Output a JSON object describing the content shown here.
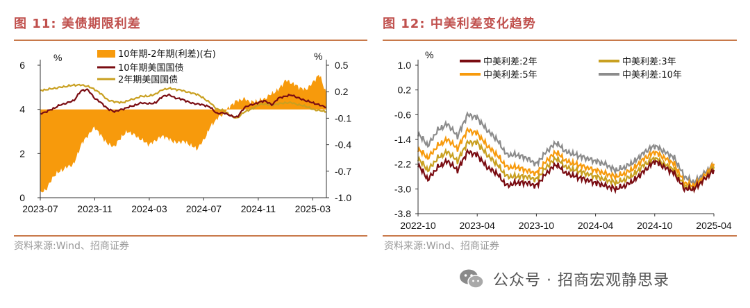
{
  "left": {
    "title": "图 11:  美债期限利差",
    "source": "资料来源:Wind、招商证券",
    "colors": {
      "spread": "#f79a0c",
      "y10": "#7a0c12",
      "y2": "#c9a021"
    },
    "chart_data": {
      "type": "line",
      "x_ticks": [
        "2023-07",
        "2023-11",
        "2024-03",
        "2024-07",
        "2024-11",
        "2025-03"
      ],
      "x_range": [
        "2023-07",
        "2025-04"
      ],
      "left_axis": {
        "unit": "%",
        "range": [
          0,
          6
        ],
        "ticks": [
          "6",
          "4",
          "2",
          "0"
        ]
      },
      "right_axis": {
        "unit": "%",
        "range": [
          -1.0,
          0.5
        ],
        "ticks": [
          "0.5",
          "0.2",
          "-0.1",
          "-0.4",
          "-0.7",
          "-1.0"
        ]
      },
      "series": [
        {
          "name": "10年期-2年期(利差)(右)",
          "type": "area",
          "axis": "right",
          "x": [
            "2023-07",
            "2023-07-15",
            "2023-08",
            "2023-08-15",
            "2023-09",
            "2023-09-15",
            "2023-10",
            "2023-10-15",
            "2023-11",
            "2023-11-15",
            "2023-12",
            "2023-12-15",
            "2024-01",
            "2024-01-15",
            "2024-02",
            "2024-02-15",
            "2024-03",
            "2024-03-15",
            "2024-04",
            "2024-04-15",
            "2024-05",
            "2024-05-15",
            "2024-06",
            "2024-06-15",
            "2024-07",
            "2024-07-15",
            "2024-08",
            "2024-08-15",
            "2024-09",
            "2024-09-15",
            "2024-10",
            "2024-10-15",
            "2024-11",
            "2024-11-15",
            "2024-12",
            "2024-12-15",
            "2025-01",
            "2025-01-15",
            "2025-02",
            "2025-02-15",
            "2025-03",
            "2025-03-15",
            "2025-04"
          ],
          "values": [
            -0.95,
            -0.9,
            -0.75,
            -0.7,
            -0.65,
            -0.62,
            -0.4,
            -0.3,
            -0.2,
            -0.3,
            -0.4,
            -0.42,
            -0.3,
            -0.25,
            -0.3,
            -0.35,
            -0.4,
            -0.35,
            -0.3,
            -0.34,
            -0.38,
            -0.36,
            -0.4,
            -0.45,
            -0.35,
            -0.2,
            -0.1,
            -0.05,
            0.05,
            0.1,
            0.12,
            0.08,
            0.1,
            0.12,
            0.18,
            0.22,
            0.33,
            0.3,
            0.25,
            0.22,
            0.3,
            0.4,
            0.18
          ]
        },
        {
          "name": "10年期美国国债",
          "type": "line",
          "axis": "left",
          "x": [
            "2023-07",
            "2023-07-15",
            "2023-08",
            "2023-08-15",
            "2023-09",
            "2023-09-15",
            "2023-10",
            "2023-10-15",
            "2023-11",
            "2023-11-15",
            "2023-12",
            "2023-12-15",
            "2024-01",
            "2024-01-15",
            "2024-02",
            "2024-02-15",
            "2024-03",
            "2024-03-15",
            "2024-04",
            "2024-04-15",
            "2024-05",
            "2024-05-15",
            "2024-06",
            "2024-06-15",
            "2024-07",
            "2024-07-15",
            "2024-08",
            "2024-08-15",
            "2024-09",
            "2024-09-15",
            "2024-10",
            "2024-10-15",
            "2024-11",
            "2024-11-15",
            "2024-12",
            "2024-12-15",
            "2025-01",
            "2025-01-15",
            "2025-02",
            "2025-02-15",
            "2025-03",
            "2025-03-15",
            "2025-04"
          ],
          "values": [
            3.8,
            3.9,
            4.05,
            4.2,
            4.3,
            4.4,
            4.85,
            4.9,
            4.5,
            4.3,
            4.0,
            3.9,
            4.0,
            4.1,
            4.2,
            4.3,
            4.25,
            4.3,
            4.6,
            4.65,
            4.5,
            4.45,
            4.3,
            4.25,
            4.2,
            4.1,
            3.8,
            3.85,
            3.7,
            3.65,
            4.1,
            4.2,
            4.3,
            4.4,
            4.2,
            4.5,
            4.6,
            4.65,
            4.5,
            4.4,
            4.3,
            4.2,
            4.1
          ]
        },
        {
          "name": "2年期美国国债",
          "type": "line",
          "axis": "left",
          "x": [
            "2023-07",
            "2023-07-15",
            "2023-08",
            "2023-08-15",
            "2023-09",
            "2023-09-15",
            "2023-10",
            "2023-10-15",
            "2023-11",
            "2023-11-15",
            "2023-12",
            "2023-12-15",
            "2024-01",
            "2024-01-15",
            "2024-02",
            "2024-02-15",
            "2024-03",
            "2024-03-15",
            "2024-04",
            "2024-04-15",
            "2024-05",
            "2024-05-15",
            "2024-06",
            "2024-06-15",
            "2024-07",
            "2024-07-15",
            "2024-08",
            "2024-08-15",
            "2024-09",
            "2024-09-15",
            "2024-10",
            "2024-10-15",
            "2024-11",
            "2024-11-15",
            "2024-12",
            "2024-12-15",
            "2025-01",
            "2025-01-15",
            "2025-02",
            "2025-02-15",
            "2025-03",
            "2025-03-15",
            "2025-04"
          ],
          "values": [
            4.85,
            4.9,
            4.95,
            5.0,
            5.05,
            5.1,
            5.1,
            5.05,
            4.9,
            4.7,
            4.4,
            4.35,
            4.3,
            4.4,
            4.5,
            4.6,
            4.6,
            4.7,
            4.9,
            4.95,
            4.9,
            4.85,
            4.75,
            4.7,
            4.5,
            4.3,
            4.0,
            3.95,
            3.7,
            3.6,
            3.9,
            4.0,
            4.2,
            4.25,
            4.2,
            4.25,
            4.3,
            4.3,
            4.2,
            4.15,
            4.0,
            3.95,
            3.9
          ]
        }
      ]
    }
  },
  "right": {
    "title": "图 12:  中美利差变化趋势",
    "source": "资料来源:Wind、招商证券",
    "colors": {
      "s2": "#7a0c12",
      "s3": "#c9a021",
      "s5": "#f79a0c",
      "s10": "#8c8c8c"
    },
    "chart_data": {
      "type": "line",
      "x_ticks": [
        "2022-10",
        "2023-04",
        "2023-10",
        "2024-04",
        "2024-10",
        "2025-04"
      ],
      "x_range": [
        "2022-10",
        "2025-04"
      ],
      "y_axis": {
        "unit": "%",
        "range": [
          -3.8,
          1.0
        ],
        "ticks": [
          "1.0",
          "0.2",
          "-0.6",
          "-1.4",
          "-2.2",
          "-3.0",
          "-3.8"
        ]
      },
      "series": [
        {
          "name": "中美利差:2年",
          "x": [
            "2022-10",
            "2022-11",
            "2022-12",
            "2023-01",
            "2023-02",
            "2023-03",
            "2023-04",
            "2023-05",
            "2023-06",
            "2023-07",
            "2023-08",
            "2023-09",
            "2023-10",
            "2023-11",
            "2023-12",
            "2024-01",
            "2024-02",
            "2024-03",
            "2024-04",
            "2024-05",
            "2024-06",
            "2024-07",
            "2024-08",
            "2024-09",
            "2024-10",
            "2024-11",
            "2024-12",
            "2025-01",
            "2025-02",
            "2025-03",
            "2025-04"
          ],
          "values": [
            -2.2,
            -2.7,
            -2.3,
            -2.1,
            -2.4,
            -1.8,
            -1.9,
            -2.3,
            -2.5,
            -2.9,
            -2.8,
            -2.8,
            -2.9,
            -2.5,
            -2.2,
            -2.5,
            -2.6,
            -2.7,
            -2.8,
            -2.9,
            -3.0,
            -2.9,
            -2.7,
            -2.4,
            -2.1,
            -2.3,
            -2.5,
            -3.0,
            -3.0,
            -2.7,
            -2.4
          ]
        },
        {
          "name": "中美利差:3年",
          "x": [
            "2022-10",
            "2022-11",
            "2022-12",
            "2023-01",
            "2023-02",
            "2023-03",
            "2023-04",
            "2023-05",
            "2023-06",
            "2023-07",
            "2023-08",
            "2023-09",
            "2023-10",
            "2023-11",
            "2023-12",
            "2024-01",
            "2024-02",
            "2024-03",
            "2024-04",
            "2024-05",
            "2024-06",
            "2024-07",
            "2024-08",
            "2024-09",
            "2024-10",
            "2024-11",
            "2024-12",
            "2025-01",
            "2025-02",
            "2025-03",
            "2025-04"
          ],
          "values": [
            -2.0,
            -2.4,
            -2.0,
            -1.8,
            -2.1,
            -1.5,
            -1.5,
            -1.9,
            -2.2,
            -2.6,
            -2.6,
            -2.6,
            -2.7,
            -2.3,
            -2.0,
            -2.3,
            -2.4,
            -2.5,
            -2.6,
            -2.7,
            -2.8,
            -2.7,
            -2.5,
            -2.2,
            -2.0,
            -2.2,
            -2.4,
            -2.9,
            -3.0,
            -2.7,
            -2.3
          ]
        },
        {
          "name": "中美利差:5年",
          "x": [
            "2022-10",
            "2022-11",
            "2022-12",
            "2023-01",
            "2023-02",
            "2023-03",
            "2023-04",
            "2023-05",
            "2023-06",
            "2023-07",
            "2023-08",
            "2023-09",
            "2023-10",
            "2023-11",
            "2023-12",
            "2024-01",
            "2024-02",
            "2024-03",
            "2024-04",
            "2024-05",
            "2024-06",
            "2024-07",
            "2024-08",
            "2024-09",
            "2024-10",
            "2024-11",
            "2024-12",
            "2025-01",
            "2025-02",
            "2025-03",
            "2025-04"
          ],
          "values": [
            -1.7,
            -2.0,
            -1.6,
            -1.4,
            -1.7,
            -1.1,
            -1.2,
            -1.6,
            -1.9,
            -2.3,
            -2.3,
            -2.4,
            -2.5,
            -2.1,
            -1.8,
            -2.1,
            -2.2,
            -2.3,
            -2.4,
            -2.5,
            -2.6,
            -2.5,
            -2.3,
            -2.0,
            -1.8,
            -2.0,
            -2.2,
            -2.8,
            -2.9,
            -2.6,
            -2.2
          ]
        },
        {
          "name": "中美利差:10年",
          "x": [
            "2022-10",
            "2022-11",
            "2022-12",
            "2023-01",
            "2023-02",
            "2023-03",
            "2023-04",
            "2023-05",
            "2023-06",
            "2023-07",
            "2023-08",
            "2023-09",
            "2023-10",
            "2023-11",
            "2023-12",
            "2024-01",
            "2024-02",
            "2024-03",
            "2024-04",
            "2024-05",
            "2024-06",
            "2024-07",
            "2024-08",
            "2024-09",
            "2024-10",
            "2024-11",
            "2024-12",
            "2025-01",
            "2025-02",
            "2025-03",
            "2025-04"
          ],
          "values": [
            -1.2,
            -1.6,
            -1.1,
            -0.9,
            -1.3,
            -0.6,
            -0.7,
            -1.1,
            -1.4,
            -1.9,
            -1.9,
            -2.0,
            -2.2,
            -1.8,
            -1.5,
            -1.8,
            -1.9,
            -2.0,
            -2.1,
            -2.2,
            -2.4,
            -2.3,
            -2.1,
            -1.8,
            -1.6,
            -1.8,
            -2.0,
            -2.6,
            -2.8,
            -2.5,
            -2.2
          ]
        }
      ]
    }
  },
  "watermark": {
    "text": "公众号 · 招商宏观静思录",
    "icon": "wechat-icon"
  }
}
